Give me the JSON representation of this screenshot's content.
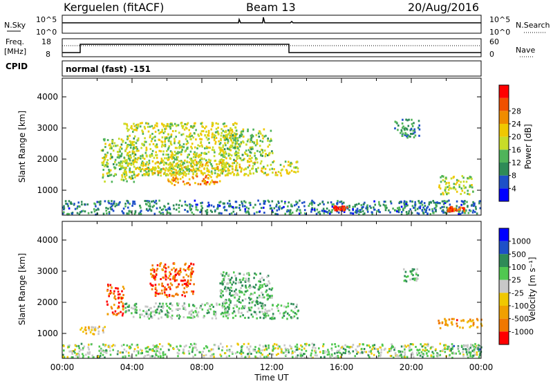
{
  "header": {
    "station": "Kerguelen (fitACF)",
    "beam": "Beam 13",
    "date": "20/Aug/2016"
  },
  "sky_panel": {
    "left_label": "N.Sky",
    "right_label": "N.Search",
    "tick_top": "10^5",
    "tick_bottom": "10^0"
  },
  "freq_panel": {
    "label_line1": "Freq.",
    "label_line2": "[MHz]",
    "left_ticks": [
      "18",
      "8"
    ],
    "right_ticks": [
      "60",
      "0"
    ],
    "right_label": "Nave",
    "cpid_label": "CPID"
  },
  "mode_text": "normal (fast) -151",
  "chart_data": [
    {
      "type": "heatmap",
      "name": "power",
      "ylabel": "Slant Range [km]",
      "ylim": [
        200,
        4600
      ],
      "y_ticks": [
        1000,
        2000,
        3000,
        4000
      ],
      "xlim": [
        0,
        24
      ],
      "colorbar": {
        "label": "Power [dB]",
        "ticks": [
          "4",
          "8",
          "12",
          "16",
          "20",
          "24",
          "28"
        ],
        "colors": [
          "#0000ff",
          "#1e50c8",
          "#2e8b57",
          "#50b45a",
          "#c8dc28",
          "#f0c800",
          "#f08c00",
          "#f05000",
          "#ff0000"
        ]
      },
      "regions": [
        {
          "t": [
            0.0,
            24.0
          ],
          "r": [
            250,
            700
          ],
          "level": 0.25
        },
        {
          "t": [
            2.2,
            4.2
          ],
          "r": [
            1300,
            2700
          ],
          "level": 0.45
        },
        {
          "t": [
            3.5,
            10.0
          ],
          "r": [
            1500,
            3200
          ],
          "level": 0.5
        },
        {
          "t": [
            4.0,
            13.5
          ],
          "r": [
            1500,
            2000
          ],
          "level": 0.55
        },
        {
          "t": [
            6.0,
            9.0
          ],
          "r": [
            1200,
            1500
          ],
          "level": 0.75
        },
        {
          "t": [
            9.0,
            12.0
          ],
          "r": [
            2000,
            3000
          ],
          "level": 0.45
        },
        {
          "t": [
            15.5,
            16.3
          ],
          "r": [
            380,
            520
          ],
          "level": 0.9
        },
        {
          "t": [
            19.0,
            20.5
          ],
          "r": [
            2700,
            3300
          ],
          "level": 0.3
        },
        {
          "t": [
            21.5,
            23.5
          ],
          "r": [
            900,
            1500
          ],
          "level": 0.5
        },
        {
          "t": [
            22.0,
            23.0
          ],
          "r": [
            350,
            500
          ],
          "level": 0.85
        }
      ]
    },
    {
      "type": "heatmap",
      "name": "velocity",
      "ylabel": "Slant Range [km]",
      "ylim": [
        200,
        4600
      ],
      "y_ticks": [
        1000,
        2000,
        3000,
        4000
      ],
      "xlim": [
        0,
        24
      ],
      "x_ticks": [
        "00:00",
        "04:00",
        "08:00",
        "12:00",
        "16:00",
        "20:00",
        "00:00"
      ],
      "xlabel": "Time UT",
      "colorbar": {
        "label": "Velocity [m s⁻¹]",
        "ticks": [
          "1000",
          "500",
          "100",
          "25",
          "-25",
          "-100",
          "-500",
          "-1000"
        ],
        "colors": [
          "#0000ff",
          "#1e50c8",
          "#2e8b57",
          "#50c850",
          "#c8c8c8",
          "#f0c800",
          "#f0a000",
          "#f07800",
          "#ff0000"
        ]
      },
      "regions": [
        {
          "t": [
            0.0,
            24.0
          ],
          "r": [
            250,
            700
          ],
          "level": 0.45
        },
        {
          "t": [
            1.0,
            2.5
          ],
          "r": [
            1000,
            1250
          ],
          "level": 0.6
        },
        {
          "t": [
            2.5,
            3.5
          ],
          "r": [
            1600,
            2600
          ],
          "level": 0.85
        },
        {
          "t": [
            3.5,
            13.5
          ],
          "r": [
            1500,
            2000
          ],
          "level": 0.4
        },
        {
          "t": [
            5.0,
            7.5
          ],
          "r": [
            2200,
            3300
          ],
          "level": 0.85
        },
        {
          "t": [
            9.0,
            12.0
          ],
          "r": [
            2000,
            3000
          ],
          "level": 0.4
        },
        {
          "t": [
            19.5,
            20.5
          ],
          "r": [
            2700,
            3100
          ],
          "level": 0.4
        },
        {
          "t": [
            21.5,
            24.0
          ],
          "r": [
            1200,
            1500
          ],
          "level": 0.75
        },
        {
          "t": [
            22.0,
            24.0
          ],
          "r": [
            300,
            700
          ],
          "level": 0.35
        }
      ]
    }
  ]
}
